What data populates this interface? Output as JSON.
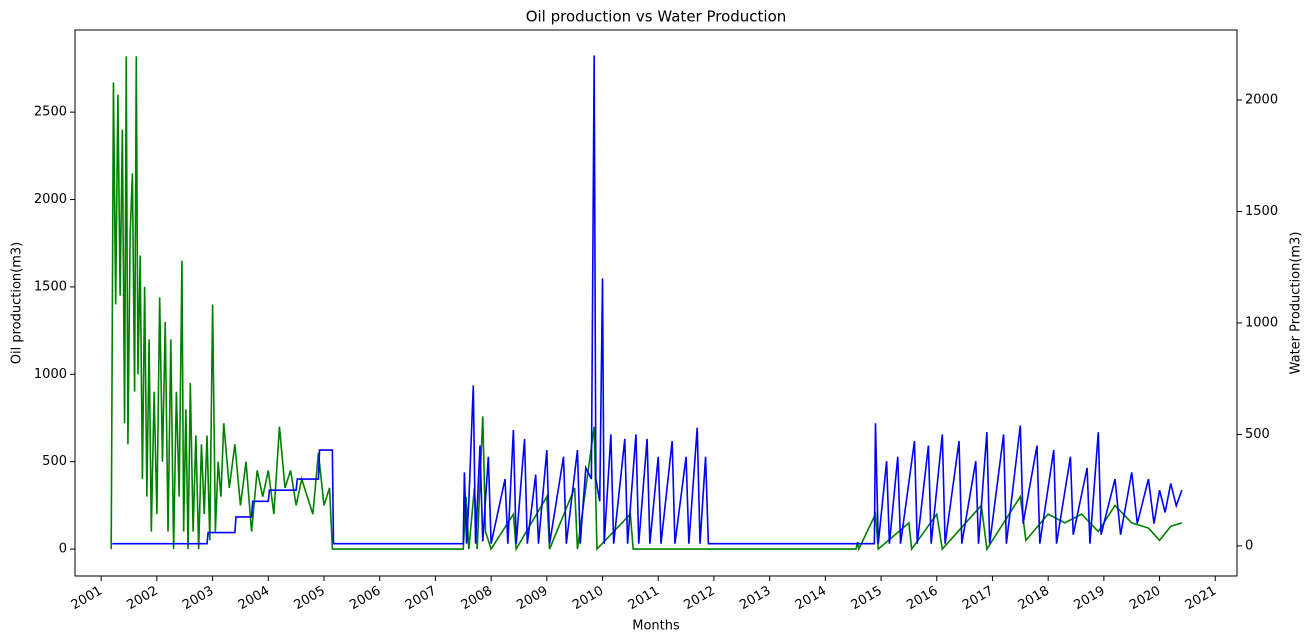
{
  "chart_data": {
    "type": "line",
    "title": "Oil production vs Water Production",
    "xlabel": "Months",
    "ylabel": "Oil production(m3)",
    "y2label": "Water Production(m3)",
    "xlim": [
      2000.53,
      2021.39
    ],
    "xticks": [
      2001,
      2002,
      2003,
      2004,
      2005,
      2006,
      2007,
      2008,
      2009,
      2010,
      2011,
      2012,
      2013,
      2014,
      2015,
      2016,
      2017,
      2018,
      2019,
      2020,
      2021
    ],
    "ylim": [
      -154,
      2970
    ],
    "yticks": [
      0,
      500,
      1000,
      1500,
      2000,
      2500
    ],
    "y2lim": [
      -135,
      2314
    ],
    "y2ticks": [
      0,
      500,
      1000,
      1500,
      2000
    ],
    "series": [
      {
        "name": "Oil production",
        "color": "green",
        "x": [
          2001.18,
          2001.22,
          2001.26,
          2001.3,
          2001.34,
          2001.38,
          2001.42,
          2001.45,
          2001.48,
          2001.52,
          2001.56,
          2001.6,
          2001.63,
          2001.66,
          2001.7,
          2001.74,
          2001.78,
          2001.82,
          2001.86,
          2001.9,
          2001.95,
          2002.0,
          2002.05,
          2002.1,
          2002.15,
          2002.2,
          2002.25,
          2002.3,
          2002.35,
          2002.4,
          2002.45,
          2002.48,
          2002.52,
          2002.56,
          2002.6,
          2002.65,
          2002.7,
          2002.75,
          2002.8,
          2002.85,
          2002.9,
          2002.95,
          2003.0,
          2003.05,
          2003.1,
          2003.15,
          2003.2,
          2003.3,
          2003.4,
          2003.5,
          2003.6,
          2003.7,
          2003.8,
          2003.9,
          2004.0,
          2004.1,
          2004.2,
          2004.3,
          2004.4,
          2004.5,
          2004.6,
          2004.7,
          2004.8,
          2004.9,
          2005.0,
          2005.1,
          2005.15,
          2007.5,
          2007.55,
          2007.6,
          2007.7,
          2007.75,
          2007.85,
          2007.9,
          2008.0,
          2008.4,
          2008.45,
          2009.0,
          2009.05,
          2009.5,
          2009.55,
          2009.85,
          2009.9,
          2010.5,
          2010.55,
          2012.0,
          2014.55,
          2014.58,
          2014.6,
          2014.9,
          2014.95,
          2015.5,
          2015.55,
          2016.0,
          2016.1,
          2016.8,
          2016.9,
          2017.5,
          2017.6,
          2018.0,
          2018.3,
          2018.6,
          2018.9,
          2019.2,
          2019.5,
          2019.8,
          2020.0,
          2020.2,
          2020.4
        ],
        "values": [
          0,
          2670,
          1400,
          2600,
          1450,
          2400,
          720,
          2820,
          600,
          1800,
          2150,
          900,
          2820,
          1000,
          1680,
          400,
          1500,
          300,
          1200,
          100,
          900,
          200,
          1440,
          500,
          1300,
          100,
          1200,
          0,
          900,
          300,
          1650,
          100,
          800,
          0,
          950,
          100,
          650,
          0,
          600,
          200,
          650,
          50,
          1400,
          100,
          500,
          300,
          720,
          350,
          600,
          250,
          500,
          100,
          450,
          300,
          450,
          200,
          700,
          350,
          450,
          250,
          400,
          300,
          200,
          550,
          250,
          350,
          0,
          0,
          300,
          0,
          350,
          0,
          760,
          100,
          0,
          200,
          0,
          300,
          0,
          350,
          0,
          700,
          0,
          200,
          0,
          0,
          0,
          40,
          0,
          200,
          0,
          150,
          0,
          200,
          0,
          250,
          0,
          300,
          50,
          200,
          150,
          200,
          100,
          250,
          150,
          120,
          50,
          130,
          150
        ]
      },
      {
        "name": "Water Production",
        "color": "blue",
        "axis": "y2",
        "x": [
          2001.2,
          2002.9,
          2002.92,
          2003.4,
          2003.42,
          2003.7,
          2003.72,
          2004.0,
          2004.02,
          2004.5,
          2004.52,
          2004.9,
          2004.92,
          2005.15,
          2005.17,
          2007.5,
          2007.52,
          2007.56,
          2007.6,
          2007.68,
          2007.72,
          2007.8,
          2007.85,
          2007.95,
          2008.0,
          2008.25,
          2008.3,
          2008.4,
          2008.45,
          2008.6,
          2008.65,
          2008.8,
          2008.85,
          2009.0,
          2009.05,
          2009.3,
          2009.35,
          2009.55,
          2009.6,
          2009.7,
          2009.8,
          2009.85,
          2009.88,
          2009.95,
          2010.0,
          2010.03,
          2010.15,
          2010.2,
          2010.4,
          2010.45,
          2010.6,
          2010.65,
          2010.8,
          2010.85,
          2011.0,
          2011.05,
          2011.25,
          2011.3,
          2011.5,
          2011.55,
          2011.7,
          2011.75,
          2011.85,
          2011.9,
          2014.88,
          2014.9,
          2014.95,
          2015.1,
          2015.15,
          2015.3,
          2015.35,
          2015.6,
          2015.65,
          2015.85,
          2015.9,
          2016.1,
          2016.15,
          2016.4,
          2016.45,
          2016.7,
          2016.75,
          2016.9,
          2016.95,
          2017.2,
          2017.25,
          2017.5,
          2017.55,
          2017.8,
          2017.85,
          2018.1,
          2018.15,
          2018.4,
          2018.45,
          2018.7,
          2018.75,
          2018.9,
          2018.95,
          2019.2,
          2019.3,
          2019.5,
          2019.6,
          2019.8,
          2019.9,
          2020.0,
          2020.1,
          2020.2,
          2020.3,
          2020.4
        ],
        "values": [
          10,
          10,
          60,
          60,
          130,
          130,
          200,
          200,
          250,
          250,
          300,
          300,
          430,
          430,
          10,
          10,
          330,
          10,
          200,
          720,
          10,
          450,
          20,
          400,
          10,
          300,
          10,
          520,
          10,
          480,
          10,
          320,
          10,
          430,
          10,
          400,
          10,
          430,
          10,
          350,
          300,
          2200,
          300,
          200,
          1200,
          10,
          500,
          10,
          480,
          10,
          500,
          10,
          480,
          10,
          400,
          10,
          470,
          10,
          400,
          10,
          530,
          10,
          400,
          10,
          10,
          550,
          10,
          380,
          10,
          400,
          10,
          470,
          10,
          450,
          10,
          500,
          10,
          470,
          10,
          380,
          10,
          510,
          10,
          500,
          10,
          540,
          100,
          450,
          10,
          430,
          10,
          400,
          50,
          350,
          10,
          510,
          50,
          300,
          50,
          330,
          100,
          300,
          100,
          250,
          150,
          280,
          180,
          250
        ]
      }
    ]
  }
}
